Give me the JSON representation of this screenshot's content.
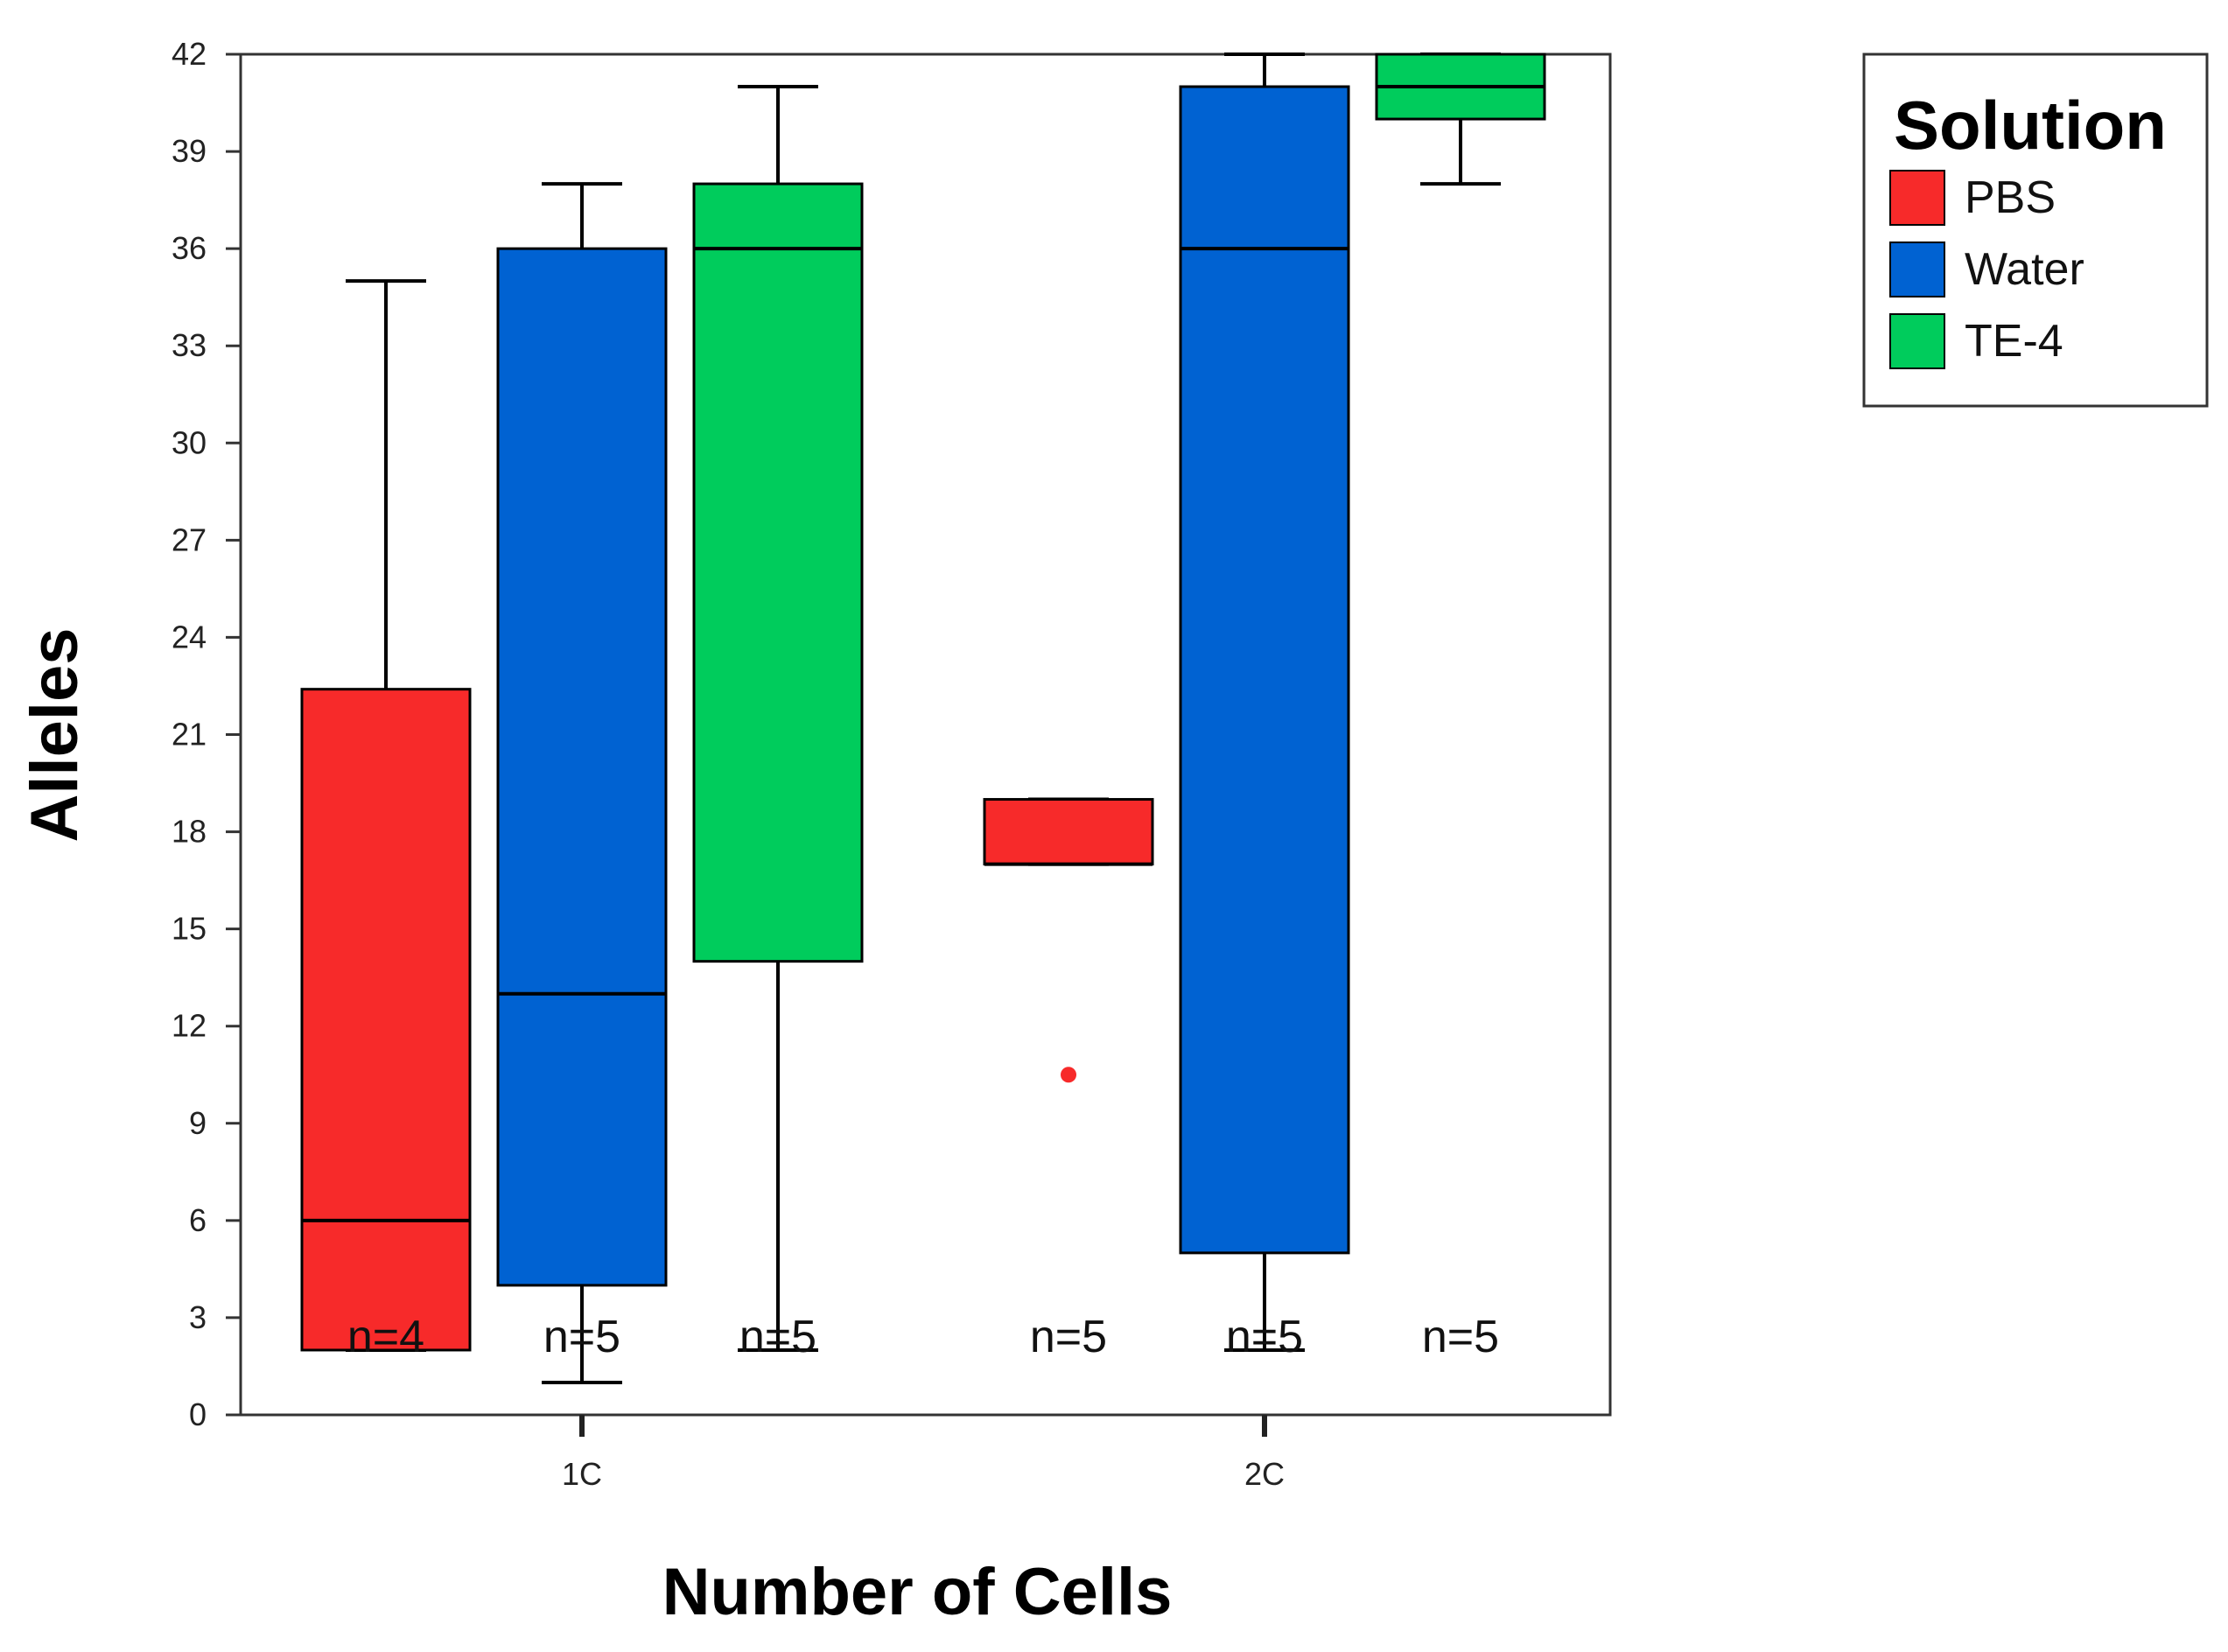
{
  "chart_data": {
    "type": "boxplot",
    "title": "",
    "xlabel": "Number of Cells",
    "ylabel": "Alleles",
    "ylim": [
      0,
      42
    ],
    "y_ticks": [
      0,
      3,
      6,
      9,
      12,
      15,
      18,
      21,
      24,
      27,
      30,
      33,
      36,
      39,
      42
    ],
    "categories": [
      "1C",
      "2C"
    ],
    "legend": {
      "title": "Solution",
      "position": "right",
      "entries": [
        {
          "name": "PBS",
          "color": "#f72a2a"
        },
        {
          "name": "Water",
          "color": "#0062d2"
        },
        {
          "name": "TE-4",
          "color": "#00cc5c"
        }
      ]
    },
    "series": [
      {
        "name": "PBS",
        "color": "#f72a2a",
        "boxes": [
          {
            "category": "1C",
            "min": 2,
            "q1": 2,
            "median": 6,
            "q3": 22.4,
            "max": 35,
            "n_label": "n=4",
            "outliers": []
          },
          {
            "category": "2C",
            "min": 17,
            "q1": 17,
            "median": 17,
            "q3": 19,
            "max": 19,
            "n_label": "n=5",
            "outliers": [
              10.5
            ]
          }
        ]
      },
      {
        "name": "Water",
        "color": "#0062d2",
        "boxes": [
          {
            "category": "1C",
            "min": 1,
            "q1": 4,
            "median": 13,
            "q3": 36,
            "max": 38,
            "n_label": "n=5",
            "outliers": []
          },
          {
            "category": "2C",
            "min": 2,
            "q1": 5,
            "median": 36,
            "q3": 41,
            "max": 42,
            "n_label": "n=5",
            "outliers": []
          }
        ]
      },
      {
        "name": "TE-4",
        "color": "#00cc5c",
        "boxes": [
          {
            "category": "1C",
            "min": 2,
            "q1": 14,
            "median": 36,
            "q3": 38,
            "max": 41,
            "n_label": "n=5",
            "outliers": []
          },
          {
            "category": "2C",
            "min": 38,
            "q1": 40,
            "median": 41,
            "q3": 42,
            "max": 42,
            "n_label": "n=5",
            "outliers": []
          }
        ]
      }
    ]
  }
}
